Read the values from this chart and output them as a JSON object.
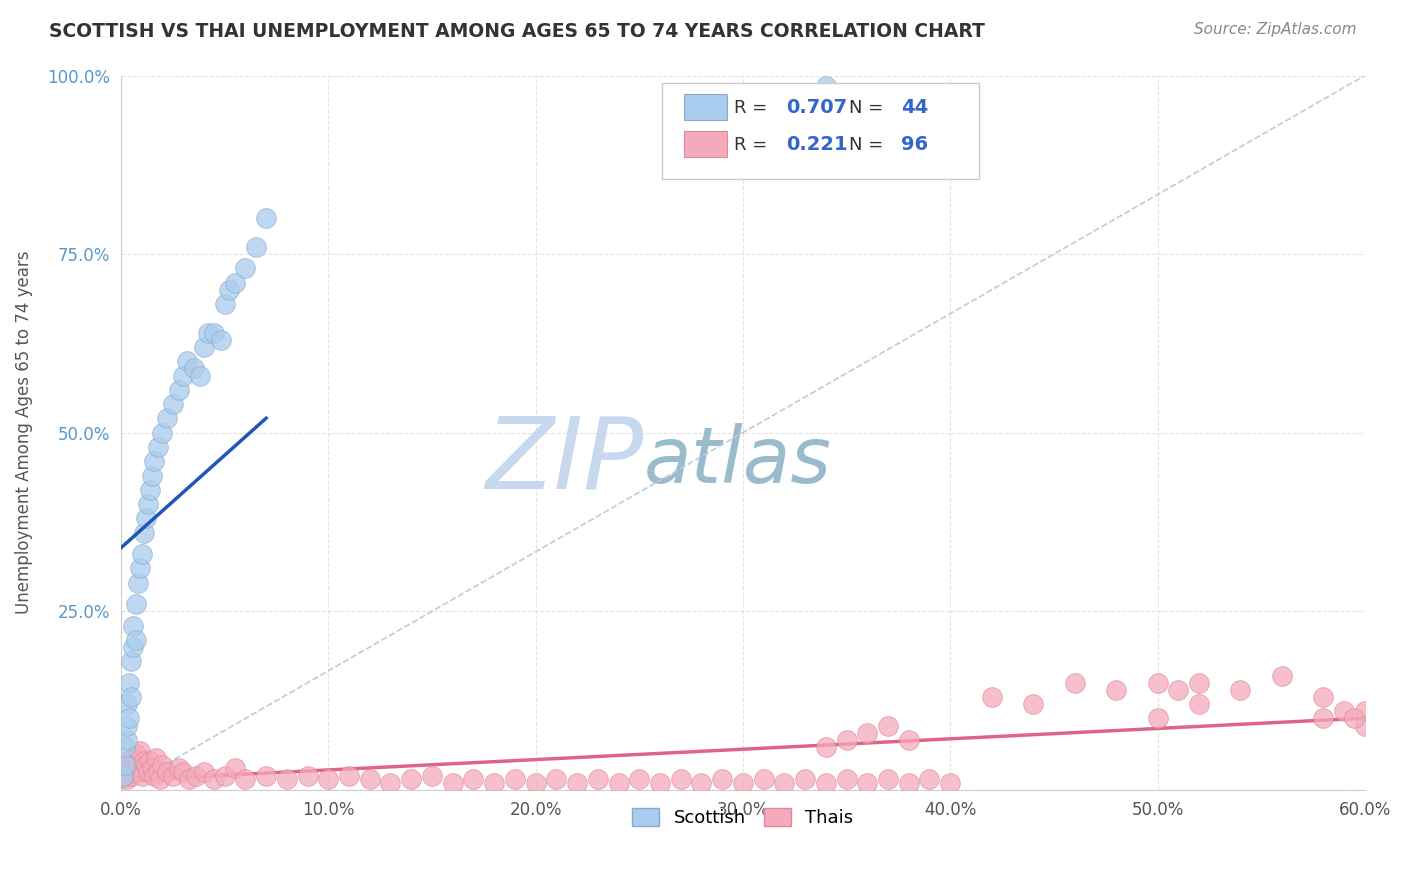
{
  "title": "SCOTTISH VS THAI UNEMPLOYMENT AMONG AGES 65 TO 74 YEARS CORRELATION CHART",
  "source": "Source: ZipAtlas.com",
  "ylabel": "Unemployment Among Ages 65 to 74 years",
  "xlim": [
    0.0,
    0.6
  ],
  "ylim": [
    0.0,
    1.0
  ],
  "xticks": [
    0.0,
    0.1,
    0.2,
    0.3,
    0.4,
    0.5,
    0.6
  ],
  "yticks": [
    0.0,
    0.25,
    0.5,
    0.75,
    1.0
  ],
  "xticklabels": [
    "0.0%",
    "10.0%",
    "20.0%",
    "30.0%",
    "40.0%",
    "50.0%",
    "60.0%"
  ],
  "yticklabels": [
    "",
    "25.0%",
    "50.0%",
    "75.0%",
    "100.0%"
  ],
  "scottish_R": 0.707,
  "scottish_N": 44,
  "thai_R": 0.221,
  "thai_N": 96,
  "scottish_color": "#aaccee",
  "scottish_edge": "#88aacc",
  "thai_color": "#f5aabb",
  "thai_edge": "#dd8899",
  "regression_scottish_color": "#2255bb",
  "regression_thai_color": "#dd6688",
  "reference_line_color": "#bbccdd",
  "background_color": "#ffffff",
  "grid_color": "#e0e0e0",
  "title_color": "#333333",
  "legend_text_color": "#3366cc",
  "watermark_zip_color": "#c8d8ee",
  "watermark_atlas_color": "#99bbcc",
  "scottish_x": [
    0.001,
    0.002,
    0.002,
    0.003,
    0.003,
    0.003,
    0.004,
    0.004,
    0.005,
    0.005,
    0.006,
    0.006,
    0.007,
    0.007,
    0.008,
    0.009,
    0.01,
    0.011,
    0.012,
    0.013,
    0.014,
    0.015,
    0.016,
    0.018,
    0.02,
    0.022,
    0.025,
    0.028,
    0.03,
    0.032,
    0.035,
    0.038,
    0.04,
    0.042,
    0.045,
    0.048,
    0.05,
    0.052,
    0.055,
    0.06,
    0.065,
    0.07,
    0.32,
    0.34
  ],
  "scottish_y": [
    0.02,
    0.035,
    0.06,
    0.07,
    0.09,
    0.12,
    0.1,
    0.15,
    0.13,
    0.18,
    0.2,
    0.23,
    0.21,
    0.26,
    0.29,
    0.31,
    0.33,
    0.36,
    0.38,
    0.4,
    0.42,
    0.44,
    0.46,
    0.48,
    0.5,
    0.52,
    0.54,
    0.56,
    0.58,
    0.6,
    0.59,
    0.58,
    0.62,
    0.64,
    0.64,
    0.63,
    0.68,
    0.7,
    0.71,
    0.73,
    0.76,
    0.8,
    0.97,
    0.985
  ],
  "thai_x": [
    0.001,
    0.002,
    0.002,
    0.003,
    0.003,
    0.004,
    0.004,
    0.005,
    0.005,
    0.006,
    0.006,
    0.007,
    0.007,
    0.008,
    0.008,
    0.009,
    0.009,
    0.01,
    0.01,
    0.011,
    0.012,
    0.013,
    0.014,
    0.015,
    0.016,
    0.017,
    0.018,
    0.019,
    0.02,
    0.022,
    0.025,
    0.028,
    0.03,
    0.033,
    0.036,
    0.04,
    0.045,
    0.05,
    0.055,
    0.06,
    0.07,
    0.08,
    0.09,
    0.1,
    0.11,
    0.12,
    0.13,
    0.14,
    0.15,
    0.16,
    0.17,
    0.18,
    0.19,
    0.2,
    0.21,
    0.22,
    0.23,
    0.24,
    0.25,
    0.26,
    0.27,
    0.28,
    0.29,
    0.3,
    0.31,
    0.32,
    0.33,
    0.34,
    0.35,
    0.36,
    0.37,
    0.38,
    0.39,
    0.4,
    0.42,
    0.44,
    0.46,
    0.48,
    0.5,
    0.52,
    0.54,
    0.56,
    0.58,
    0.6,
    0.34,
    0.35,
    0.36,
    0.37,
    0.38,
    0.5,
    0.51,
    0.52,
    0.58,
    0.59,
    0.6,
    0.595
  ],
  "thai_y": [
    0.025,
    0.03,
    0.02,
    0.04,
    0.015,
    0.035,
    0.025,
    0.03,
    0.02,
    0.045,
    0.025,
    0.05,
    0.03,
    0.035,
    0.04,
    0.025,
    0.055,
    0.03,
    0.02,
    0.04,
    0.035,
    0.025,
    0.04,
    0.03,
    0.02,
    0.045,
    0.025,
    0.015,
    0.035,
    0.025,
    0.02,
    0.03,
    0.025,
    0.015,
    0.02,
    0.025,
    0.015,
    0.02,
    0.03,
    0.015,
    0.02,
    0.015,
    0.02,
    0.015,
    0.02,
    0.015,
    0.01,
    0.015,
    0.02,
    0.01,
    0.015,
    0.01,
    0.015,
    0.01,
    0.015,
    0.01,
    0.015,
    0.01,
    0.015,
    0.01,
    0.015,
    0.01,
    0.015,
    0.01,
    0.015,
    0.01,
    0.015,
    0.01,
    0.015,
    0.01,
    0.015,
    0.01,
    0.015,
    0.01,
    0.13,
    0.12,
    0.15,
    0.14,
    0.1,
    0.15,
    0.14,
    0.16,
    0.13,
    0.11,
    0.06,
    0.07,
    0.08,
    0.09,
    0.07,
    0.15,
    0.14,
    0.12,
    0.1,
    0.11,
    0.09,
    0.1
  ]
}
